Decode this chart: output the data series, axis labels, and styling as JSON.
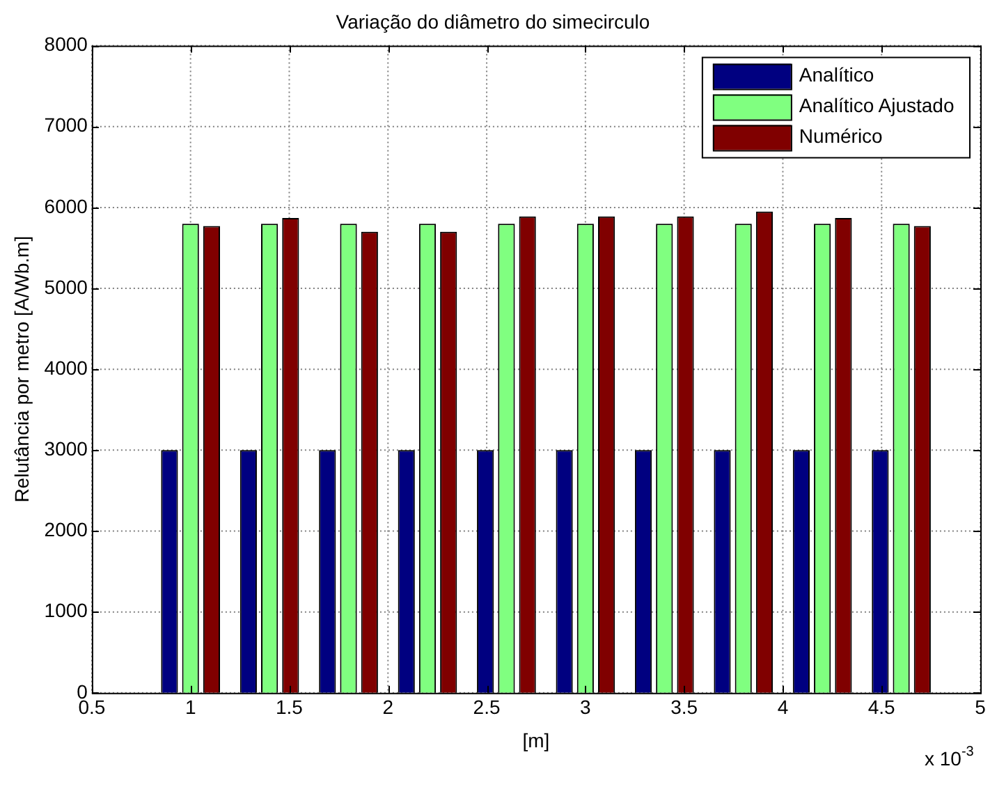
{
  "chart_data": {
    "type": "bar",
    "title": "Variação do diâmetro do simecirculo",
    "xlabel": "[m]",
    "ylabel": "Relutância por metro [A/Wb.m]",
    "x": [
      1.0,
      1.4,
      1.8,
      2.2,
      2.6,
      3.0,
      3.4,
      3.8,
      4.2,
      4.6
    ],
    "series": [
      {
        "name": "Analítico",
        "color": "#000080",
        "values": [
          3000,
          3000,
          3000,
          3000,
          3000,
          3000,
          3000,
          3000,
          3000,
          3000
        ]
      },
      {
        "name": "Analítico Ajustado",
        "color": "#80ff80",
        "values": [
          5800,
          5800,
          5800,
          5800,
          5800,
          5800,
          5800,
          5800,
          5800,
          5800
        ]
      },
      {
        "name": "Numérico",
        "color": "#800000",
        "values": [
          5770,
          5870,
          5700,
          5700,
          5890,
          5890,
          5890,
          5950,
          5870,
          5770
        ]
      }
    ],
    "xlim": [
      0.5,
      5
    ],
    "xticks": [
      0.5,
      1,
      1.5,
      2,
      2.5,
      3,
      3.5,
      4,
      4.5,
      5
    ],
    "ylim": [
      0,
      8000
    ],
    "yticks": [
      0,
      1000,
      2000,
      3000,
      4000,
      5000,
      6000,
      7000,
      8000
    ],
    "grid": true,
    "legend": "top right",
    "annotations": [
      "x 10$^{-3}$"
    ]
  }
}
